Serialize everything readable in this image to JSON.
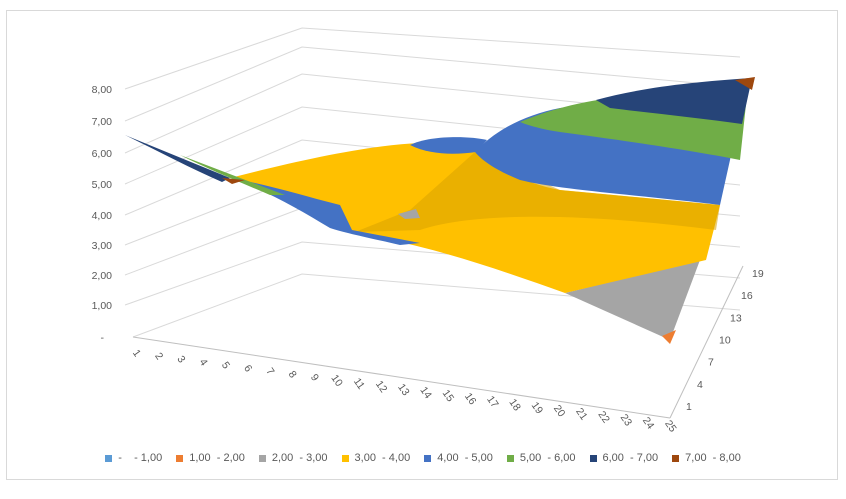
{
  "chart_data": {
    "type": "surface",
    "title": "",
    "z_ticks": [
      "-",
      "1,00",
      "2,00",
      "3,00",
      "4,00",
      "5,00",
      "6,00",
      "7,00",
      "8,00"
    ],
    "x_ticks": [
      "1",
      "2",
      "3",
      "4",
      "5",
      "6",
      "7",
      "8",
      "9",
      "10",
      "11",
      "12",
      "13",
      "14",
      "15",
      "16",
      "17",
      "18",
      "19",
      "20",
      "21",
      "22",
      "23",
      "24",
      "25"
    ],
    "y_ticks": [
      "1",
      "4",
      "7",
      "10",
      "13",
      "16",
      "19"
    ],
    "legend": [
      {
        "label": "-    - 1,00",
        "color": "#5b9bd5"
      },
      {
        "label": "1,00  - 2,00",
        "color": "#ed7d31"
      },
      {
        "label": "2,00  - 3,00",
        "color": "#a5a5a5"
      },
      {
        "label": "3,00  - 4,00",
        "color": "#ffc000"
      },
      {
        "label": "4,00  - 5,00",
        "color": "#4472c4"
      },
      {
        "label": "5,00  - 6,00",
        "color": "#70ad47"
      },
      {
        "label": "6,00  - 7,00",
        "color": "#264478"
      },
      {
        "label": "7,00  - 8,00",
        "color": "#9e480e"
      }
    ],
    "zlim": [
      0,
      8
    ],
    "grid": true,
    "legend_position": "bottom"
  }
}
